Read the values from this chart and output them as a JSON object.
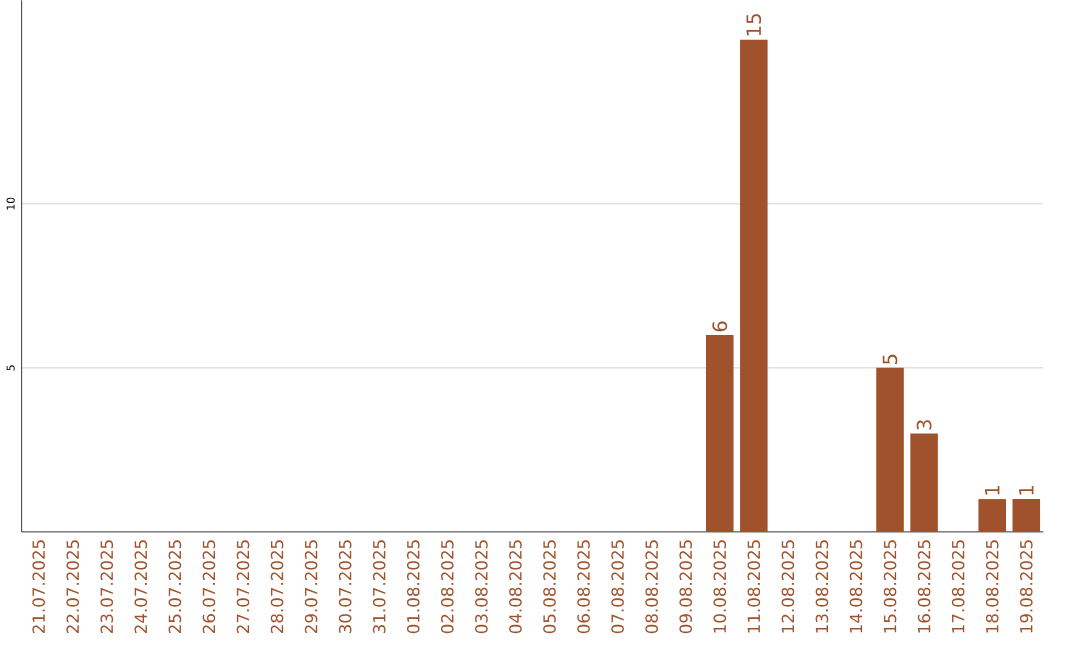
{
  "chart_data": {
    "type": "bar",
    "categories": [
      "21.07.2025",
      "22.07.2025",
      "23.07.2025",
      "24.07.2025",
      "25.07.2025",
      "26.07.2025",
      "27.07.2025",
      "28.07.2025",
      "29.07.2025",
      "30.07.2025",
      "31.07.2025",
      "01.08.2025",
      "02.08.2025",
      "03.08.2025",
      "04.08.2025",
      "05.08.2025",
      "06.08.2025",
      "07.08.2025",
      "08.08.2025",
      "09.08.2025",
      "10.08.2025",
      "11.08.2025",
      "12.08.2025",
      "13.08.2025",
      "14.08.2025",
      "15.08.2025",
      "16.08.2025",
      "17.08.2025",
      "18.08.2025",
      "19.08.2025"
    ],
    "values": [
      0,
      0,
      0,
      0,
      0,
      0,
      0,
      0,
      0,
      0,
      0,
      0,
      0,
      0,
      0,
      0,
      0,
      0,
      0,
      0,
      6,
      15,
      0,
      0,
      0,
      5,
      3,
      0,
      1,
      1
    ],
    "value_labels": [
      null,
      null,
      null,
      null,
      null,
      null,
      null,
      null,
      null,
      null,
      null,
      null,
      null,
      null,
      null,
      null,
      null,
      null,
      null,
      null,
      "6",
      "15",
      null,
      null,
      null,
      "5",
      "3",
      null,
      "1",
      "1"
    ],
    "color": "#a0522d",
    "ylim": [
      0,
      16.2
    ],
    "yticks": [
      5,
      10
    ],
    "grid": "y"
  }
}
